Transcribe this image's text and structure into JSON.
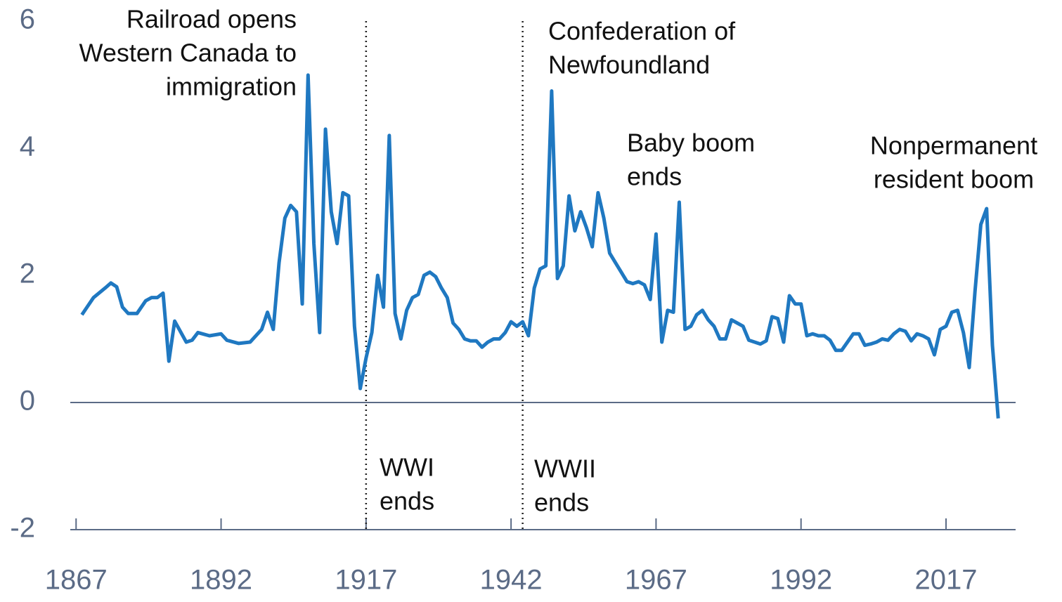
{
  "chart_data": {
    "type": "line",
    "x": [
      1868,
      1870,
      1872,
      1873,
      1874,
      1875,
      1876,
      1877.5,
      1879,
      1880,
      1881,
      1882,
      1883,
      1884,
      1886,
      1887,
      1888,
      1890,
      1892,
      1893,
      1895,
      1897,
      1899,
      1900,
      1901,
      1902,
      1903,
      1904,
      1905,
      1906,
      1907,
      1908,
      1909,
      1910,
      1911,
      1912,
      1913,
      1914,
      1915,
      1916,
      1917,
      1918,
      1919,
      1920,
      1921,
      1922,
      1923,
      1924,
      1925,
      1926,
      1927,
      1928,
      1929,
      1930,
      1931,
      1932,
      1933,
      1934,
      1935,
      1936,
      1937,
      1938,
      1939,
      1940,
      1941,
      1942,
      1943,
      1944,
      1945,
      1946,
      1947,
      1948,
      1949,
      1950,
      1951,
      1952,
      1953,
      1954,
      1955,
      1956,
      1957,
      1958,
      1959,
      1960,
      1961,
      1962,
      1963,
      1964,
      1965,
      1966,
      1967,
      1968,
      1969,
      1970,
      1971,
      1972,
      1973,
      1974,
      1975,
      1976,
      1977,
      1978,
      1979,
      1980,
      1981,
      1982,
      1983,
      1984,
      1985,
      1986,
      1987,
      1988,
      1989,
      1990,
      1991,
      1992,
      1993,
      1994,
      1995,
      1996,
      1997,
      1998,
      1999,
      2000,
      2001,
      2002,
      2003,
      2004,
      2005,
      2006,
      2007,
      2008,
      2009,
      2010,
      2011,
      2012,
      2013,
      2014,
      2015,
      2016,
      2017,
      2018,
      2019,
      2020,
      2021,
      2022,
      2023,
      2024,
      2025,
      2026
    ],
    "series": [
      {
        "color": "#1f78c1",
        "values": [
          1.38,
          1.65,
          1.8,
          1.88,
          1.82,
          1.5,
          1.4,
          1.4,
          1.6,
          1.65,
          1.65,
          1.72,
          0.65,
          1.28,
          0.95,
          0.98,
          1.1,
          1.05,
          1.08,
          0.98,
          0.93,
          0.95,
          1.15,
          1.42,
          1.15,
          2.2,
          2.9,
          3.1,
          3.0,
          1.55,
          5.15,
          2.5,
          1.1,
          4.3,
          3.0,
          2.5,
          3.3,
          3.25,
          1.2,
          0.22,
          0.7,
          1.1,
          2.0,
          1.5,
          4.2,
          1.4,
          1.0,
          1.45,
          1.65,
          1.7,
          2.0,
          2.05,
          1.98,
          1.8,
          1.65,
          1.25,
          1.15,
          1.0,
          0.97,
          0.97,
          0.87,
          0.95,
          1.0,
          1.0,
          1.1,
          1.27,
          1.2,
          1.27,
          1.05,
          1.8,
          2.1,
          2.15,
          4.9,
          1.95,
          2.15,
          3.25,
          2.7,
          3.0,
          2.75,
          2.45,
          3.3,
          2.9,
          2.35,
          2.2,
          2.05,
          1.9,
          1.87,
          1.9,
          1.85,
          1.62,
          2.65,
          0.95,
          1.45,
          1.42,
          3.15,
          1.15,
          1.2,
          1.38,
          1.45,
          1.3,
          1.2,
          1.0,
          1.0,
          1.3,
          1.25,
          1.2,
          0.98,
          0.95,
          0.92,
          0.97,
          1.35,
          1.32,
          0.95,
          1.68,
          1.55,
          1.55,
          1.05,
          1.08,
          1.05,
          1.05,
          0.98,
          0.82,
          0.82,
          0.95,
          1.08,
          1.08,
          0.9,
          0.92,
          0.95,
          1.0,
          0.98,
          1.08,
          1.15,
          1.12,
          0.97,
          1.08,
          1.05,
          1.0,
          0.75,
          1.15,
          1.2,
          1.42,
          1.45,
          1.1,
          0.55,
          1.75,
          2.8,
          3.05,
          0.9,
          -0.25
        ]
      }
    ],
    "xlim": [
      1866,
      2029
    ],
    "xticks": [
      1867,
      1892,
      1917,
      1942,
      1967,
      1992,
      2017
    ],
    "ylim": [
      -2,
      6
    ],
    "yticks": [
      -2,
      0,
      2,
      4,
      6
    ],
    "vlines": [
      1917,
      1944
    ],
    "annotations": [
      {
        "lines": [
          "Railroad opens",
          "Western Canada to",
          "immigration"
        ]
      },
      {
        "lines": [
          "Confederation of",
          "Newfoundland"
        ]
      },
      {
        "lines": [
          "Baby boom",
          "ends"
        ]
      },
      {
        "lines": [
          "Nonpermanent",
          "resident boom"
        ]
      },
      {
        "lines": [
          "WWI",
          "ends"
        ]
      },
      {
        "lines": [
          "WWII",
          "ends"
        ]
      }
    ]
  }
}
